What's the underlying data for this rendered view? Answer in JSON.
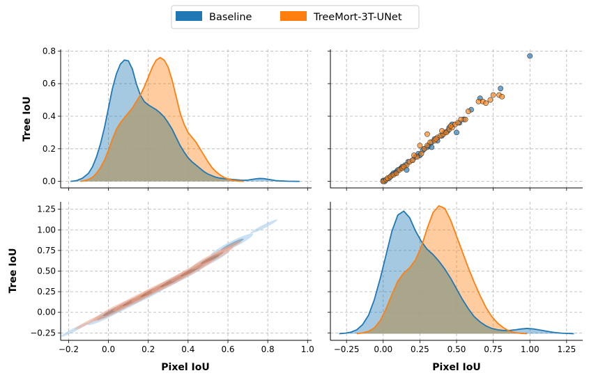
{
  "chart_data": {
    "type": "pairplot",
    "variables": [
      "Pixel IoU",
      "Tree IoU"
    ],
    "legend": {
      "placement": "top-center",
      "entries": [
        {
          "label": "Baseline",
          "color": "#1f77b4"
        },
        {
          "label": "TreeMort-3T-UNet",
          "color": "#ff7f0e"
        }
      ]
    },
    "overlap_color": "#a3a48c",
    "panels": [
      {
        "id": "tree-iou-kde",
        "type": "kde",
        "position": "top-left",
        "xlim": [
          -0.24,
          1.02
        ],
        "xticks": [],
        "ylim": [
          -0.04,
          0.81
        ],
        "yticks": [
          "0.0",
          "0.2",
          "0.4",
          "0.6",
          "0.8"
        ],
        "yticks_values": [
          0.0,
          0.2,
          0.4,
          0.6,
          0.8
        ],
        "ylabel": "Tree IoU",
        "xlabel": "",
        "series": [
          {
            "name": "Baseline",
            "color": "#1f77b4",
            "x": [
              -0.19,
              -0.16,
              -0.13,
              -0.1,
              -0.08,
              -0.06,
              -0.04,
              -0.02,
              0.0,
              0.02,
              0.04,
              0.06,
              0.08,
              0.1,
              0.12,
              0.14,
              0.16,
              0.18,
              0.2,
              0.22,
              0.24,
              0.26,
              0.28,
              0.3,
              0.32,
              0.34,
              0.36,
              0.38,
              0.4,
              0.42,
              0.44,
              0.46,
              0.48,
              0.5,
              0.52,
              0.54,
              0.56,
              0.58,
              0.6,
              0.62,
              0.64,
              0.66,
              0.68,
              0.7,
              0.72,
              0.74,
              0.76,
              0.78,
              0.8,
              0.82,
              0.84,
              0.86,
              0.88,
              0.9,
              0.93,
              0.96
            ],
            "y": [
              0.0,
              0.005,
              0.02,
              0.05,
              0.09,
              0.15,
              0.23,
              0.33,
              0.45,
              0.57,
              0.66,
              0.72,
              0.745,
              0.74,
              0.69,
              0.6,
              0.53,
              0.49,
              0.47,
              0.455,
              0.44,
              0.42,
              0.395,
              0.36,
              0.32,
              0.27,
              0.22,
              0.18,
              0.145,
              0.12,
              0.1,
              0.08,
              0.06,
              0.045,
              0.035,
              0.025,
              0.02,
              0.017,
              0.015,
              0.012,
              0.01,
              0.008,
              0.007,
              0.008,
              0.012,
              0.016,
              0.018,
              0.017,
              0.013,
              0.009,
              0.005,
              0.003,
              0.002,
              0.001,
              0.0005,
              0.0
            ]
          },
          {
            "name": "TreeMort-3T-UNet",
            "color": "#ff7f0e",
            "x": [
              -0.14,
              -0.12,
              -0.1,
              -0.08,
              -0.06,
              -0.04,
              -0.02,
              0.0,
              0.02,
              0.04,
              0.06,
              0.08,
              0.1,
              0.12,
              0.14,
              0.16,
              0.18,
              0.2,
              0.22,
              0.24,
              0.26,
              0.28,
              0.3,
              0.32,
              0.34,
              0.36,
              0.38,
              0.4,
              0.42,
              0.44,
              0.46,
              0.48,
              0.5,
              0.52,
              0.54,
              0.56,
              0.58,
              0.6,
              0.62,
              0.64,
              0.66,
              0.68
            ],
            "y": [
              0.0,
              0.005,
              0.012,
              0.025,
              0.05,
              0.085,
              0.13,
              0.19,
              0.26,
              0.32,
              0.36,
              0.39,
              0.42,
              0.45,
              0.49,
              0.53,
              0.58,
              0.64,
              0.7,
              0.745,
              0.76,
              0.745,
              0.7,
              0.62,
              0.52,
              0.42,
              0.35,
              0.3,
              0.27,
              0.24,
              0.2,
              0.16,
              0.12,
              0.085,
              0.06,
              0.04,
              0.025,
              0.015,
              0.008,
              0.004,
              0.002,
              0.0
            ]
          }
        ]
      },
      {
        "id": "tree-vs-pixel-scatter",
        "type": "scatter",
        "position": "top-right",
        "xlim": [
          -0.36,
          1.36
        ],
        "xticks": [],
        "ylim": [
          -0.04,
          0.81
        ],
        "yticks": [],
        "ylabel": "",
        "xlabel": "",
        "series": [
          {
            "name": "Baseline",
            "color": "#1f77b4",
            "points": [
              [
                0.0,
                0.0
              ],
              [
                0.0,
                0.005
              ],
              [
                0.01,
                0.0
              ],
              [
                0.02,
                0.01
              ],
              [
                0.04,
                0.02
              ],
              [
                0.05,
                0.03
              ],
              [
                0.06,
                0.04
              ],
              [
                0.08,
                0.05
              ],
              [
                0.09,
                0.06
              ],
              [
                0.1,
                0.07
              ],
              [
                0.12,
                0.08
              ],
              [
                0.13,
                0.09
              ],
              [
                0.15,
                0.1
              ],
              [
                0.17,
                0.12
              ],
              [
                0.2,
                0.13
              ],
              [
                0.22,
                0.15
              ],
              [
                0.24,
                0.17
              ],
              [
                0.25,
                0.16
              ],
              [
                0.28,
                0.2
              ],
              [
                0.3,
                0.21
              ],
              [
                0.31,
                0.22
              ],
              [
                0.33,
                0.24
              ],
              [
                0.35,
                0.26
              ],
              [
                0.37,
                0.25
              ],
              [
                0.4,
                0.28
              ],
              [
                0.42,
                0.3
              ],
              [
                0.44,
                0.31
              ],
              [
                0.45,
                0.33
              ],
              [
                0.5,
                0.3
              ],
              [
                0.52,
                0.36
              ],
              [
                0.55,
                0.38
              ],
              [
                0.6,
                0.44
              ],
              [
                0.66,
                0.51
              ],
              [
                0.8,
                0.57
              ],
              [
                1.0,
                0.77
              ],
              [
                0.16,
                0.07
              ],
              [
                0.07,
                0.05
              ],
              [
                0.33,
                0.21
              ],
              [
                0.47,
                0.35
              ],
              [
                0.27,
                0.19
              ]
            ]
          },
          {
            "name": "TreeMort-3T-UNet",
            "color": "#ff7f0e",
            "points": [
              [
                0.0,
                0.0
              ],
              [
                0.02,
                0.01
              ],
              [
                0.03,
                0.02
              ],
              [
                0.05,
                0.03
              ],
              [
                0.07,
                0.04
              ],
              [
                0.09,
                0.05
              ],
              [
                0.11,
                0.07
              ],
              [
                0.13,
                0.08
              ],
              [
                0.16,
                0.1
              ],
              [
                0.18,
                0.12
              ],
              [
                0.2,
                0.13
              ],
              [
                0.23,
                0.15
              ],
              [
                0.26,
                0.17
              ],
              [
                0.28,
                0.2
              ],
              [
                0.3,
                0.22
              ],
              [
                0.32,
                0.24
              ],
              [
                0.35,
                0.25
              ],
              [
                0.37,
                0.27
              ],
              [
                0.39,
                0.28
              ],
              [
                0.41,
                0.29
              ],
              [
                0.43,
                0.3
              ],
              [
                0.45,
                0.32
              ],
              [
                0.47,
                0.33
              ],
              [
                0.49,
                0.35
              ],
              [
                0.51,
                0.36
              ],
              [
                0.53,
                0.38
              ],
              [
                0.56,
                0.38
              ],
              [
                0.58,
                0.43
              ],
              [
                0.65,
                0.49
              ],
              [
                0.68,
                0.49
              ],
              [
                0.7,
                0.48
              ],
              [
                0.73,
                0.5
              ],
              [
                0.75,
                0.53
              ],
              [
                0.79,
                0.53
              ],
              [
                0.81,
                0.52
              ],
              [
                0.3,
                0.29
              ],
              [
                0.25,
                0.22
              ],
              [
                0.4,
                0.31
              ],
              [
                0.14,
                0.09
              ],
              [
                0.36,
                0.26
              ],
              [
                0.46,
                0.34
              ],
              [
                0.21,
                0.16
              ]
            ]
          }
        ]
      },
      {
        "id": "pixel-vs-tree-kde2d",
        "type": "kde2d",
        "position": "bottom-left",
        "xlim": [
          -0.24,
          1.02
        ],
        "xticks": [
          "−0.2",
          "0.0",
          "0.2",
          "0.4",
          "0.6",
          "0.8",
          "1.0"
        ],
        "xticks_values": [
          -0.2,
          0.0,
          0.2,
          0.4,
          0.6,
          0.8,
          1.0
        ],
        "ylim": [
          -0.34,
          1.34
        ],
        "yticks": [
          "−0.25",
          "0.00",
          "0.25",
          "0.50",
          "0.75",
          "1.00",
          "1.25"
        ],
        "yticks_values": [
          -0.25,
          0.0,
          0.25,
          0.5,
          0.75,
          1.0,
          1.25
        ],
        "ylabel": "Tree IoU",
        "xlabel": "Pixel IoU",
        "series": [
          {
            "name": "Baseline",
            "color": "#1f77b4",
            "centers": [
              [
                -0.17,
                -0.21
              ],
              [
                0.0,
                -0.02
              ],
              [
                0.1,
                0.1
              ],
              [
                0.2,
                0.22
              ],
              [
                0.3,
                0.35
              ],
              [
                0.38,
                0.45
              ],
              [
                0.5,
                0.62
              ],
              [
                0.62,
                0.82
              ],
              [
                0.78,
                1.04
              ]
            ],
            "slope": 1.22
          },
          {
            "name": "TreeMort-3T-UNet",
            "color": "#ff7f0e",
            "centers": [
              [
                -0.1,
                -0.12
              ],
              [
                0.03,
                0.03
              ],
              [
                0.13,
                0.15
              ],
              [
                0.22,
                0.26
              ],
              [
                0.32,
                0.38
              ],
              [
                0.42,
                0.51
              ],
              [
                0.52,
                0.66
              ],
              [
                0.6,
                0.78
              ]
            ],
            "slope": 1.25
          }
        ]
      },
      {
        "id": "pixel-iou-kde",
        "type": "kde",
        "position": "bottom-right",
        "xlim": [
          -0.36,
          1.36
        ],
        "xticks": [
          "−0.25",
          "0.00",
          "0.25",
          "0.50",
          "0.75",
          "1.00",
          "1.25"
        ],
        "xticks_values": [
          -0.25,
          0.0,
          0.25,
          0.5,
          0.75,
          1.0,
          1.25
        ],
        "ylim": [
          -0.05,
          1.0
        ],
        "yticks": [],
        "ylabel": "",
        "xlabel": "Pixel IoU",
        "series": [
          {
            "name": "Baseline",
            "color": "#1f77b4",
            "x": [
              -0.3,
              -0.26,
              -0.22,
              -0.18,
              -0.14,
              -0.1,
              -0.06,
              -0.02,
              0.02,
              0.06,
              0.1,
              0.14,
              0.18,
              0.22,
              0.26,
              0.3,
              0.34,
              0.38,
              0.42,
              0.46,
              0.5,
              0.54,
              0.58,
              0.62,
              0.66,
              0.7,
              0.74,
              0.78,
              0.82,
              0.86,
              0.9,
              0.94,
              0.98,
              1.02,
              1.06,
              1.1,
              1.14,
              1.18,
              1.22,
              1.26,
              1.3
            ],
            "y": [
              0.0,
              0.004,
              0.012,
              0.03,
              0.07,
              0.14,
              0.26,
              0.42,
              0.6,
              0.78,
              0.9,
              0.93,
              0.88,
              0.78,
              0.7,
              0.64,
              0.6,
              0.55,
              0.49,
              0.42,
              0.34,
              0.26,
              0.19,
              0.13,
              0.09,
              0.06,
              0.04,
              0.03,
              0.025,
              0.025,
              0.03,
              0.036,
              0.04,
              0.037,
              0.03,
              0.022,
              0.014,
              0.008,
              0.004,
              0.002,
              0.0
            ]
          },
          {
            "name": "TreeMort-3T-UNet",
            "color": "#ff7f0e",
            "x": [
              -0.18,
              -0.14,
              -0.1,
              -0.06,
              -0.02,
              0.02,
              0.06,
              0.1,
              0.14,
              0.18,
              0.22,
              0.26,
              0.3,
              0.34,
              0.38,
              0.42,
              0.46,
              0.5,
              0.54,
              0.58,
              0.62,
              0.66,
              0.7,
              0.74,
              0.78,
              0.82,
              0.86,
              0.9,
              0.94,
              0.98
            ],
            "y": [
              0.0,
              0.006,
              0.018,
              0.045,
              0.1,
              0.19,
              0.3,
              0.4,
              0.46,
              0.5,
              0.56,
              0.66,
              0.8,
              0.92,
              0.97,
              0.95,
              0.86,
              0.74,
              0.62,
              0.5,
              0.39,
              0.29,
              0.2,
              0.13,
              0.08,
              0.045,
              0.02,
              0.008,
              0.003,
              0.0
            ]
          }
        ]
      }
    ]
  }
}
